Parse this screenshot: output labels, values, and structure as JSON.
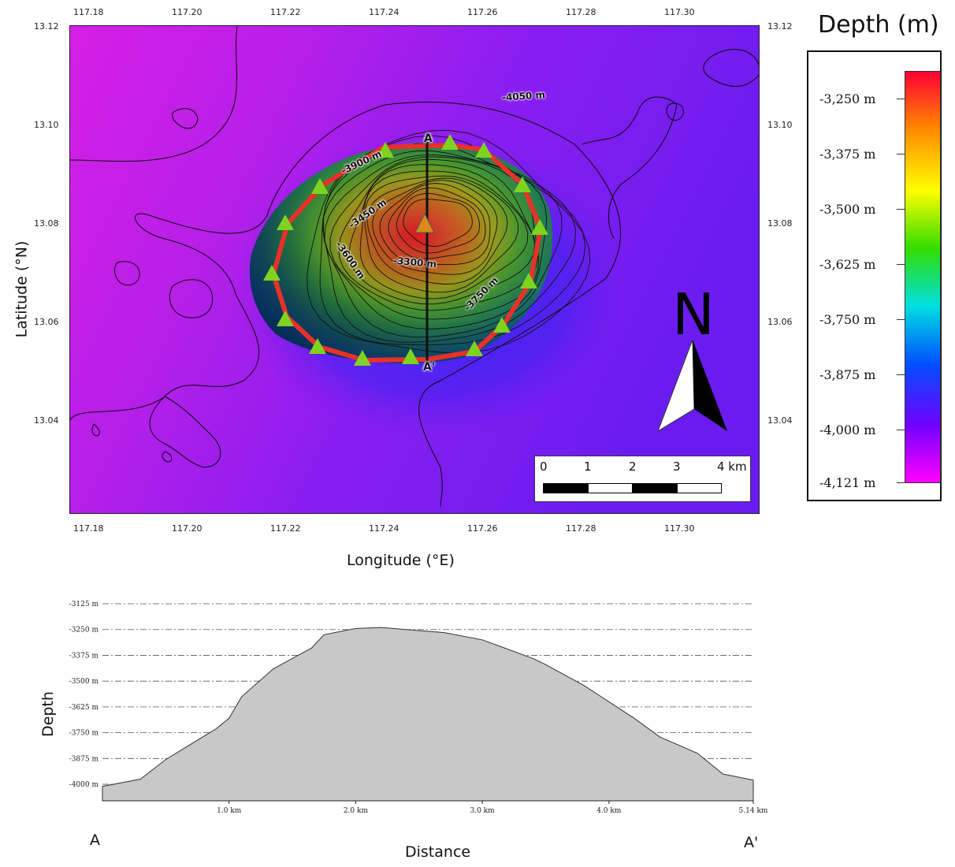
{
  "map": {
    "x_ticks": [
      "117.18",
      "117.20",
      "117.22",
      "117.24",
      "117.26",
      "117.28",
      "117.30"
    ],
    "y_ticks": [
      "13.12",
      "13.10",
      "13.08",
      "13.06",
      "13.04"
    ],
    "x_label": "Longitude (°E)",
    "y_label": "Latitude (°N)",
    "contour_labels": [
      "-4050 m",
      "-3900 m",
      "-3450 m",
      "-3600 m",
      "-3300 m",
      "-3750 m"
    ],
    "profile_start": "A",
    "profile_end": "A'",
    "north_letter": "N",
    "scale_bar": {
      "labels": [
        "0",
        "1",
        "2",
        "3",
        "4 km"
      ]
    },
    "colors": {
      "outline": "#e8312a",
      "markers": "#7ed321",
      "summit": "#d88a1a"
    }
  },
  "legend": {
    "title": "Depth (m)",
    "labels": [
      "-3,250 m",
      "-3,375 m",
      "-3,500 m",
      "-3,625 m",
      "-3,750 m",
      "-3,875 m",
      "-4,000 m",
      "-4,121 m"
    ],
    "gradient_colors": [
      "#ff0033",
      "#ff8a00",
      "#ffff00",
      "#33dd00",
      "#00e0e0",
      "#0050ff",
      "#7000ff",
      "#ff00ff"
    ]
  },
  "chart_data": {
    "type": "area",
    "title": "",
    "xlabel": "Distance",
    "ylabel": "Depth",
    "x": [
      0,
      0.3,
      0.5,
      0.9,
      1.0,
      1.1,
      1.35,
      1.65,
      1.75,
      2.0,
      2.2,
      2.7,
      3.0,
      3.4,
      3.5,
      3.8,
      4.2,
      4.4,
      4.7,
      4.9,
      5.14
    ],
    "y": [
      -4010,
      -3975,
      -3880,
      -3730,
      -3680,
      -3575,
      -3440,
      -3340,
      -3275,
      -3245,
      -3240,
      -3265,
      -3300,
      -3390,
      -3420,
      -3520,
      -3680,
      -3770,
      -3850,
      -3950,
      -3980
    ],
    "xlim": [
      0,
      5.14
    ],
    "ylim": [
      -4080,
      -3125
    ],
    "y_ticks": [
      "-3125 m",
      "-3250 m",
      "-3375 m",
      "-3500 m",
      "-3625 m",
      "-3750 m",
      "-3875 m",
      "-4000 m"
    ],
    "x_ticks": [
      "1.0 km",
      "2.0 km",
      "3.0 km",
      "4.0 km",
      "5.14 km"
    ],
    "start_label": "A",
    "end_label": "A'",
    "grid": true,
    "fill_color": "#c8c8c8"
  }
}
